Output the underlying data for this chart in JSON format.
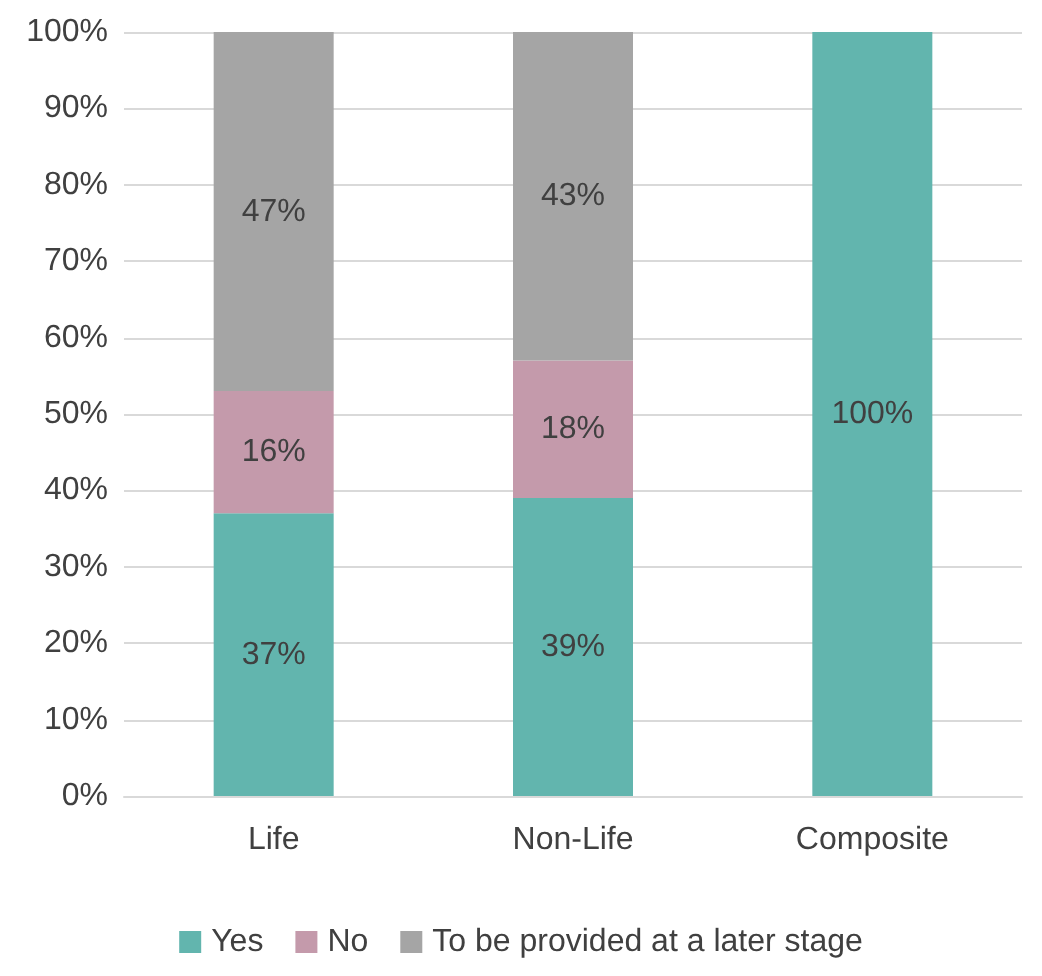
{
  "chart_data": {
    "type": "bar",
    "stacked": true,
    "categories": [
      "Life",
      "Non-Life",
      "Composite"
    ],
    "series": [
      {
        "name": "Yes",
        "color": "#62b5ae",
        "values": [
          37,
          39,
          100
        ],
        "value_labels": [
          "37%",
          "39%",
          "100%"
        ]
      },
      {
        "name": "No",
        "color": "#c49aab",
        "values": [
          16,
          18,
          0
        ],
        "value_labels": [
          "16%",
          "18%",
          null
        ]
      },
      {
        "name": "To be provided at a later stage",
        "color": "#a5a5a5",
        "values": [
          47,
          43,
          0
        ],
        "value_labels": [
          "47%",
          "43%",
          null
        ]
      }
    ],
    "ylim": [
      0,
      100
    ],
    "yticks": [
      {
        "value": 0,
        "label": "0%"
      },
      {
        "value": 10,
        "label": "10%"
      },
      {
        "value": 20,
        "label": "20%"
      },
      {
        "value": 30,
        "label": "30%"
      },
      {
        "value": 40,
        "label": "40%"
      },
      {
        "value": 50,
        "label": "50%"
      },
      {
        "value": 60,
        "label": "60%"
      },
      {
        "value": 70,
        "label": "70%"
      },
      {
        "value": 80,
        "label": "80%"
      },
      {
        "value": 90,
        "label": "90%"
      },
      {
        "value": 100,
        "label": "100%"
      }
    ],
    "grid": "y",
    "legend": "bottom"
  }
}
